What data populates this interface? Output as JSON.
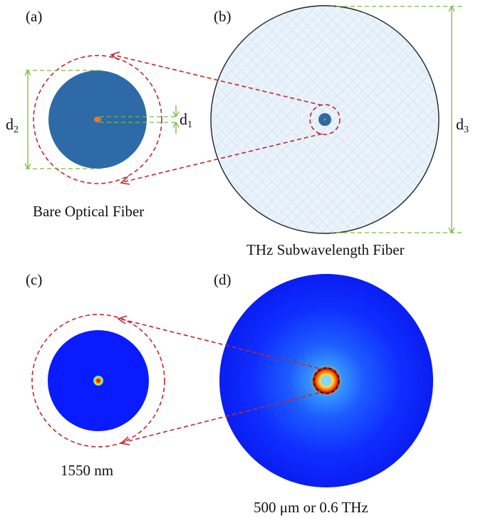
{
  "panels": {
    "a": {
      "label": "(a)",
      "caption": "Bare Optical Fiber",
      "d1_main": "d",
      "d1_sub": "1",
      "d2_main": "d",
      "d2_sub": "2"
    },
    "b": {
      "label": "(b)",
      "caption": "THz Subwavelength Fiber",
      "d3_main": "d",
      "d3_sub": "3"
    },
    "c": {
      "label": "(c)",
      "caption": "1550 nm"
    },
    "d": {
      "label": "(d)",
      "caption": "500 μm or 0.6 THz"
    }
  },
  "colors": {
    "fiber_core_blue": "#2e6aa7",
    "optical_core_orange": "#e07b39",
    "mesh_fill": "#eaf3fb",
    "mesh_line": "#b9d4ea",
    "dashed_red": "#c0272d",
    "dimension_green": "#7ab648",
    "field_blue": "#0a1bff"
  }
}
